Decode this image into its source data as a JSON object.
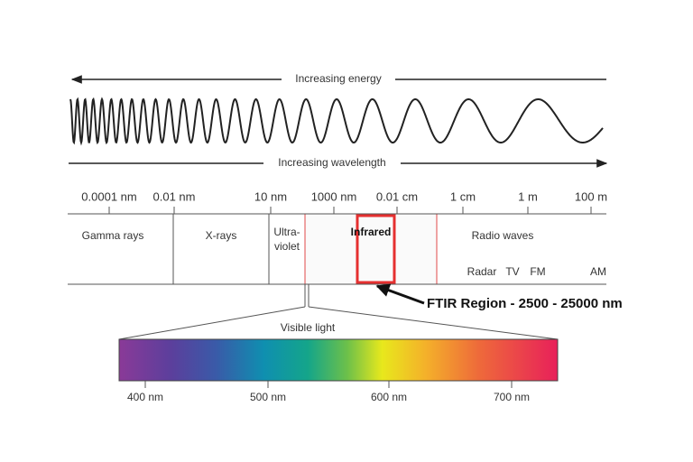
{
  "energy_label": "Increasing energy",
  "wavelength_label": "Increasing wavelength",
  "scale_labels": [
    "0.0001 nm",
    "0.01 nm",
    "10 nm",
    "1000 nm",
    "0.01 cm",
    "1 cm",
    "1 m",
    "100 m"
  ],
  "regions": {
    "gamma": "Gamma rays",
    "xray": "X-rays",
    "uv": [
      "Ultra-",
      "violet"
    ],
    "infrared": "Infrared",
    "radio": "Radio waves"
  },
  "radio_bands": [
    "Radar",
    "TV",
    "FM",
    "AM"
  ],
  "ftir_label": "FTIR Region - 2500 - 25000 nm",
  "visible_label": "Visible light",
  "visible_ticks": [
    "400 nm",
    "500 nm",
    "600 nm",
    "700 nm"
  ]
}
